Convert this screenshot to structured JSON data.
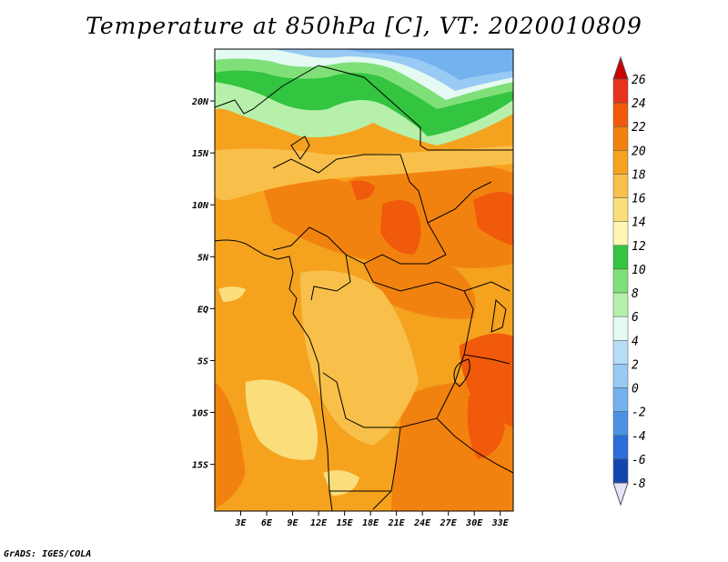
{
  "title": "Temperature at 850hPa [C], VT: 2020010809",
  "credit": "GrADS: IGES/COLA",
  "map": {
    "lon_range": [
      0,
      34.5
    ],
    "lat_range": [
      -19.5,
      25
    ],
    "lat_ticks": [
      {
        "value": 20,
        "label": "20N"
      },
      {
        "value": 15,
        "label": "15N"
      },
      {
        "value": 10,
        "label": "10N"
      },
      {
        "value": 5,
        "label": "5N"
      },
      {
        "value": 0,
        "label": "EQ"
      },
      {
        "value": -5,
        "label": "5S"
      },
      {
        "value": -10,
        "label": "10S"
      },
      {
        "value": -15,
        "label": "15S"
      }
    ],
    "lon_ticks": [
      {
        "value": 3,
        "label": "3E"
      },
      {
        "value": 6,
        "label": "6E"
      },
      {
        "value": 9,
        "label": "9E"
      },
      {
        "value": 12,
        "label": "12E"
      },
      {
        "value": 15,
        "label": "15E"
      },
      {
        "value": 18,
        "label": "18E"
      },
      {
        "value": 21,
        "label": "21E"
      },
      {
        "value": 24,
        "label": "24E"
      },
      {
        "value": 27,
        "label": "27E"
      },
      {
        "value": 30,
        "label": "30E"
      },
      {
        "value": 33,
        "label": "33E"
      }
    ]
  },
  "colorbar": {
    "levels": [
      {
        "label": "26"
      },
      {
        "label": "24"
      },
      {
        "label": "22"
      },
      {
        "label": "20"
      },
      {
        "label": "18"
      },
      {
        "label": "16"
      },
      {
        "label": "14"
      },
      {
        "label": "12"
      },
      {
        "label": "10"
      },
      {
        "label": "8"
      },
      {
        "label": "6"
      },
      {
        "label": "4"
      },
      {
        "label": "2"
      },
      {
        "label": "0"
      },
      {
        "label": "-2"
      },
      {
        "label": "-4"
      },
      {
        "label": "-6"
      },
      {
        "label": "-8"
      }
    ],
    "colors": [
      "#e7321e",
      "#f05a0a",
      "#f2820f",
      "#f5a21e",
      "#f8c04a",
      "#fbde7c",
      "#fef6b4",
      "#33c440",
      "#7fe07a",
      "#b6f0aa",
      "#e4faf2",
      "#b6dcf6",
      "#98caf4",
      "#73b2ee",
      "#4c92e4",
      "#2a6ed8",
      "#1446b2",
      "#0a1a78"
    ],
    "top_cap_color": "#c80000",
    "bottom_cap_color": "#e8e4f8"
  }
}
